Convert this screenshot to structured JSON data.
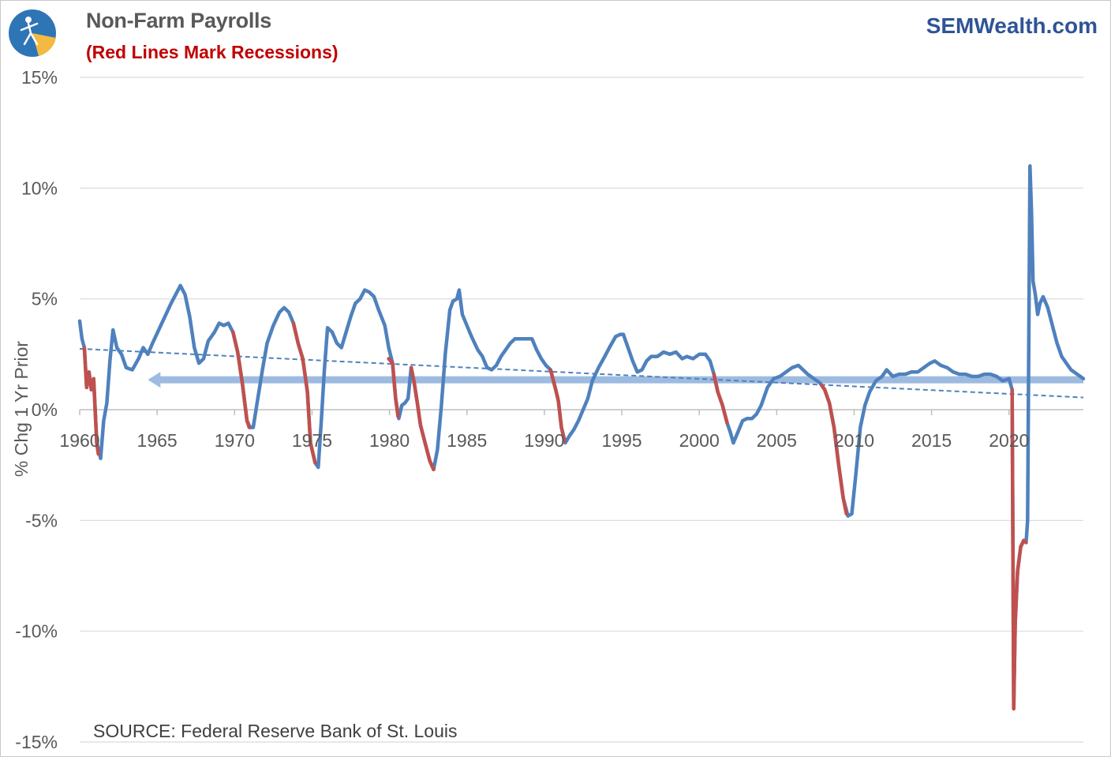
{
  "header": {
    "title": "Non-Farm Payrolls",
    "subtitle": "(Red Lines Mark Recessions)",
    "brand": "SEMWealth.com"
  },
  "colors": {
    "series": "#4f81bd",
    "recession": "#c0504d",
    "reference": "#9dbbe0",
    "trend": "#4f81bd",
    "grid": "#d9d9d9",
    "title": "#595959",
    "subtitle": "#c00000",
    "brand": "#2f5496"
  },
  "chart_data": {
    "type": "line",
    "title": "Non-Farm Payrolls",
    "subtitle": "(Red Lines Mark Recessions)",
    "xlabel": "",
    "ylabel": "% Chg 1 Yr Prior",
    "source": "SOURCE: Federal Reserve Bank of St. Louis",
    "xlim": [
      1960,
      2024.8
    ],
    "ylim": [
      -15,
      15
    ],
    "x_ticks": [
      1960,
      1965,
      1970,
      1975,
      1980,
      1985,
      1990,
      1995,
      2000,
      2005,
      2010,
      2015,
      2020
    ],
    "x_tick_labels": [
      "1960",
      "1965",
      "1970",
      "1975",
      "1980",
      "1985",
      "1990",
      "1995",
      "2000",
      "2005",
      "2010",
      "2015",
      "2020"
    ],
    "y_ticks": [
      15,
      10,
      5,
      0,
      -5,
      -10,
      -15
    ],
    "y_tick_labels": [
      "15%",
      "10%",
      "5%",
      "0%",
      "-5%",
      "-10%",
      "-15%"
    ],
    "grid": "horizontal",
    "series": [
      {
        "key": "payrolls",
        "style": "line",
        "points": [
          [
            1960.0,
            4.0
          ],
          [
            1960.15,
            3.2
          ],
          [
            1960.3,
            2.8
          ],
          [
            1960.45,
            1.0
          ],
          [
            1960.6,
            1.7
          ],
          [
            1960.75,
            0.9
          ],
          [
            1960.9,
            1.4
          ],
          [
            1961.1,
            -1.5
          ],
          [
            1961.35,
            -2.2
          ],
          [
            1961.55,
            -0.5
          ],
          [
            1961.75,
            0.3
          ],
          [
            1961.95,
            2.2
          ],
          [
            1962.15,
            3.6
          ],
          [
            1962.4,
            2.8
          ],
          [
            1962.7,
            2.5
          ],
          [
            1963.0,
            1.9
          ],
          [
            1963.4,
            1.8
          ],
          [
            1963.8,
            2.3
          ],
          [
            1964.1,
            2.8
          ],
          [
            1964.4,
            2.5
          ],
          [
            1964.7,
            3.0
          ],
          [
            1965.1,
            3.6
          ],
          [
            1965.5,
            4.2
          ],
          [
            1965.9,
            4.8
          ],
          [
            1966.2,
            5.2
          ],
          [
            1966.5,
            5.6
          ],
          [
            1966.8,
            5.2
          ],
          [
            1967.1,
            4.2
          ],
          [
            1967.4,
            2.8
          ],
          [
            1967.7,
            2.1
          ],
          [
            1968.0,
            2.3
          ],
          [
            1968.3,
            3.1
          ],
          [
            1968.7,
            3.5
          ],
          [
            1969.0,
            3.9
          ],
          [
            1969.3,
            3.8
          ],
          [
            1969.6,
            3.9
          ],
          [
            1969.9,
            3.5
          ],
          [
            1970.2,
            2.6
          ],
          [
            1970.5,
            1.2
          ],
          [
            1970.8,
            -0.5
          ],
          [
            1971.0,
            -0.8
          ],
          [
            1971.2,
            -0.8
          ],
          [
            1971.5,
            0.5
          ],
          [
            1971.8,
            1.8
          ],
          [
            1972.1,
            3.0
          ],
          [
            1972.5,
            3.8
          ],
          [
            1972.9,
            4.4
          ],
          [
            1973.2,
            4.6
          ],
          [
            1973.5,
            4.4
          ],
          [
            1973.8,
            3.9
          ],
          [
            1974.1,
            3.0
          ],
          [
            1974.4,
            2.3
          ],
          [
            1974.7,
            0.8
          ],
          [
            1974.9,
            -1.5
          ],
          [
            1975.2,
            -2.4
          ],
          [
            1975.4,
            -2.6
          ],
          [
            1975.6,
            -0.5
          ],
          [
            1975.8,
            1.8
          ],
          [
            1976.0,
            3.7
          ],
          [
            1976.3,
            3.5
          ],
          [
            1976.6,
            3.0
          ],
          [
            1976.9,
            2.8
          ],
          [
            1977.2,
            3.5
          ],
          [
            1977.5,
            4.2
          ],
          [
            1977.8,
            4.8
          ],
          [
            1978.1,
            5.0
          ],
          [
            1978.4,
            5.4
          ],
          [
            1978.7,
            5.3
          ],
          [
            1979.0,
            5.1
          ],
          [
            1979.3,
            4.5
          ],
          [
            1979.7,
            3.8
          ],
          [
            1979.95,
            2.8
          ],
          [
            1980.2,
            2.1
          ],
          [
            1980.4,
            0.5
          ],
          [
            1980.6,
            -0.4
          ],
          [
            1980.8,
            0.2
          ],
          [
            1981.0,
            0.3
          ],
          [
            1981.2,
            0.5
          ],
          [
            1981.4,
            1.9
          ],
          [
            1981.6,
            1.2
          ],
          [
            1981.8,
            0.3
          ],
          [
            1982.0,
            -0.7
          ],
          [
            1982.3,
            -1.5
          ],
          [
            1982.6,
            -2.3
          ],
          [
            1982.85,
            -2.7
          ],
          [
            1983.1,
            -1.8
          ],
          [
            1983.35,
            0.2
          ],
          [
            1983.6,
            2.5
          ],
          [
            1983.9,
            4.5
          ],
          [
            1984.1,
            4.9
          ],
          [
            1984.35,
            5.0
          ],
          [
            1984.5,
            5.4
          ],
          [
            1984.7,
            4.3
          ],
          [
            1985.0,
            3.8
          ],
          [
            1985.3,
            3.3
          ],
          [
            1985.7,
            2.7
          ],
          [
            1986.0,
            2.4
          ],
          [
            1986.3,
            1.9
          ],
          [
            1986.6,
            1.8
          ],
          [
            1986.9,
            2.0
          ],
          [
            1987.2,
            2.4
          ],
          [
            1987.5,
            2.7
          ],
          [
            1987.8,
            3.0
          ],
          [
            1988.1,
            3.2
          ],
          [
            1988.5,
            3.2
          ],
          [
            1988.9,
            3.2
          ],
          [
            1989.2,
            3.2
          ],
          [
            1989.5,
            2.7
          ],
          [
            1989.8,
            2.3
          ],
          [
            1990.1,
            2.0
          ],
          [
            1990.4,
            1.8
          ],
          [
            1990.7,
            1.0
          ],
          [
            1990.9,
            0.4
          ],
          [
            1991.1,
            -0.8
          ],
          [
            1991.35,
            -1.5
          ],
          [
            1991.6,
            -1.2
          ],
          [
            1991.9,
            -0.9
          ],
          [
            1992.2,
            -0.5
          ],
          [
            1992.5,
            0.0
          ],
          [
            1992.8,
            0.5
          ],
          [
            1993.1,
            1.3
          ],
          [
            1993.5,
            1.9
          ],
          [
            1993.9,
            2.4
          ],
          [
            1994.2,
            2.8
          ],
          [
            1994.6,
            3.3
          ],
          [
            1994.9,
            3.4
          ],
          [
            1995.1,
            3.4
          ],
          [
            1995.4,
            2.8
          ],
          [
            1995.7,
            2.2
          ],
          [
            1996.0,
            1.7
          ],
          [
            1996.3,
            1.8
          ],
          [
            1996.6,
            2.2
          ],
          [
            1996.9,
            2.4
          ],
          [
            1997.3,
            2.4
          ],
          [
            1997.7,
            2.6
          ],
          [
            1998.1,
            2.5
          ],
          [
            1998.5,
            2.6
          ],
          [
            1998.9,
            2.3
          ],
          [
            1999.2,
            2.4
          ],
          [
            1999.6,
            2.3
          ],
          [
            2000.0,
            2.5
          ],
          [
            2000.4,
            2.5
          ],
          [
            2000.7,
            2.2
          ],
          [
            2000.95,
            1.6
          ],
          [
            2001.2,
            0.8
          ],
          [
            2001.5,
            0.2
          ],
          [
            2001.8,
            -0.6
          ],
          [
            2002.0,
            -1.0
          ],
          [
            2002.2,
            -1.5
          ],
          [
            2002.5,
            -1.0
          ],
          [
            2002.8,
            -0.5
          ],
          [
            2003.1,
            -0.4
          ],
          [
            2003.4,
            -0.4
          ],
          [
            2003.7,
            -0.2
          ],
          [
            2004.0,
            0.2
          ],
          [
            2004.4,
            1.0
          ],
          [
            2004.8,
            1.4
          ],
          [
            2005.2,
            1.5
          ],
          [
            2005.6,
            1.7
          ],
          [
            2006.0,
            1.9
          ],
          [
            2006.4,
            2.0
          ],
          [
            2006.7,
            1.8
          ],
          [
            2007.0,
            1.6
          ],
          [
            2007.4,
            1.4
          ],
          [
            2007.8,
            1.2
          ],
          [
            2008.1,
            0.9
          ],
          [
            2008.4,
            0.3
          ],
          [
            2008.7,
            -0.8
          ],
          [
            2009.0,
            -2.5
          ],
          [
            2009.3,
            -4.0
          ],
          [
            2009.6,
            -4.8
          ],
          [
            2009.85,
            -4.7
          ],
          [
            2010.1,
            -3.0
          ],
          [
            2010.4,
            -0.8
          ],
          [
            2010.7,
            0.2
          ],
          [
            2011.0,
            0.8
          ],
          [
            2011.4,
            1.3
          ],
          [
            2011.8,
            1.5
          ],
          [
            2012.1,
            1.8
          ],
          [
            2012.5,
            1.5
          ],
          [
            2012.9,
            1.6
          ],
          [
            2013.3,
            1.6
          ],
          [
            2013.7,
            1.7
          ],
          [
            2014.1,
            1.7
          ],
          [
            2014.5,
            1.9
          ],
          [
            2014.9,
            2.1
          ],
          [
            2015.2,
            2.2
          ],
          [
            2015.6,
            2.0
          ],
          [
            2016.0,
            1.9
          ],
          [
            2016.4,
            1.7
          ],
          [
            2016.8,
            1.6
          ],
          [
            2017.2,
            1.6
          ],
          [
            2017.6,
            1.5
          ],
          [
            2018.0,
            1.5
          ],
          [
            2018.4,
            1.6
          ],
          [
            2018.8,
            1.6
          ],
          [
            2019.2,
            1.5
          ],
          [
            2019.6,
            1.3
          ],
          [
            2020.0,
            1.4
          ],
          [
            2020.2,
            0.9
          ],
          [
            2020.3,
            -13.5
          ],
          [
            2020.4,
            -9.6
          ],
          [
            2020.55,
            -7.3
          ],
          [
            2020.75,
            -6.2
          ],
          [
            2020.95,
            -5.9
          ],
          [
            2021.1,
            -6.0
          ],
          [
            2021.2,
            -5.0
          ],
          [
            2021.35,
            11.0
          ],
          [
            2021.45,
            9.0
          ],
          [
            2021.55,
            5.8
          ],
          [
            2021.7,
            5.2
          ],
          [
            2021.85,
            4.3
          ],
          [
            2022.0,
            4.8
          ],
          [
            2022.2,
            5.1
          ],
          [
            2022.5,
            4.6
          ],
          [
            2022.8,
            3.8
          ],
          [
            2023.1,
            3.0
          ],
          [
            2023.4,
            2.4
          ],
          [
            2023.7,
            2.1
          ],
          [
            2024.0,
            1.8
          ],
          [
            2024.4,
            1.6
          ],
          [
            2024.8,
            1.4
          ]
        ]
      },
      {
        "key": "recessions",
        "style": "segments",
        "segments": [
          [
            [
              1960.3,
              2.8
            ],
            [
              1960.45,
              1.0
            ],
            [
              1960.6,
              1.7
            ],
            [
              1960.75,
              0.9
            ],
            [
              1960.9,
              1.4
            ],
            [
              1961.1,
              -1.5
            ],
            [
              1961.2,
              -2.0
            ]
          ],
          [
            [
              1969.9,
              3.5
            ],
            [
              1970.2,
              2.6
            ],
            [
              1970.5,
              1.2
            ],
            [
              1970.8,
              -0.5
            ],
            [
              1970.95,
              -0.8
            ]
          ],
          [
            [
              1973.8,
              3.9
            ],
            [
              1974.1,
              3.0
            ],
            [
              1974.4,
              2.3
            ],
            [
              1974.7,
              0.8
            ],
            [
              1974.9,
              -1.5
            ],
            [
              1975.2,
              -2.4
            ]
          ],
          [
            [
              1979.95,
              2.3
            ],
            [
              1980.2,
              2.1
            ],
            [
              1980.4,
              0.5
            ],
            [
              1980.55,
              -0.3
            ]
          ],
          [
            [
              1981.4,
              1.9
            ],
            [
              1981.6,
              1.2
            ],
            [
              1981.8,
              0.3
            ],
            [
              1982.0,
              -0.7
            ],
            [
              1982.3,
              -1.5
            ],
            [
              1982.6,
              -2.3
            ],
            [
              1982.85,
              -2.7
            ]
          ],
          [
            [
              1990.4,
              1.8
            ],
            [
              1990.7,
              1.0
            ],
            [
              1990.9,
              0.4
            ],
            [
              1991.1,
              -0.8
            ],
            [
              1991.3,
              -1.4
            ]
          ],
          [
            [
              2000.95,
              1.6
            ],
            [
              2001.2,
              0.8
            ],
            [
              2001.5,
              0.2
            ],
            [
              2001.8,
              -0.6
            ]
          ],
          [
            [
              2007.9,
              1.1
            ],
            [
              2008.1,
              0.9
            ],
            [
              2008.4,
              0.3
            ],
            [
              2008.7,
              -0.8
            ],
            [
              2009.0,
              -2.5
            ],
            [
              2009.3,
              -4.0
            ],
            [
              2009.5,
              -4.7
            ]
          ],
          [
            [
              2020.2,
              0.9
            ],
            [
              2020.3,
              -13.5
            ],
            [
              2020.4,
              -9.6
            ],
            [
              2020.55,
              -7.3
            ],
            [
              2020.75,
              -6.2
            ],
            [
              2020.95,
              -5.9
            ],
            [
              2021.1,
              -6.0
            ]
          ]
        ]
      },
      {
        "key": "trend",
        "style": "dashed",
        "points": [
          [
            1960.0,
            2.75
          ],
          [
            2024.8,
            0.55
          ]
        ]
      },
      {
        "key": "reference-level",
        "style": "arrow",
        "points": [
          [
            1964.5,
            1.35
          ],
          [
            2024.8,
            1.35
          ]
        ]
      }
    ]
  }
}
